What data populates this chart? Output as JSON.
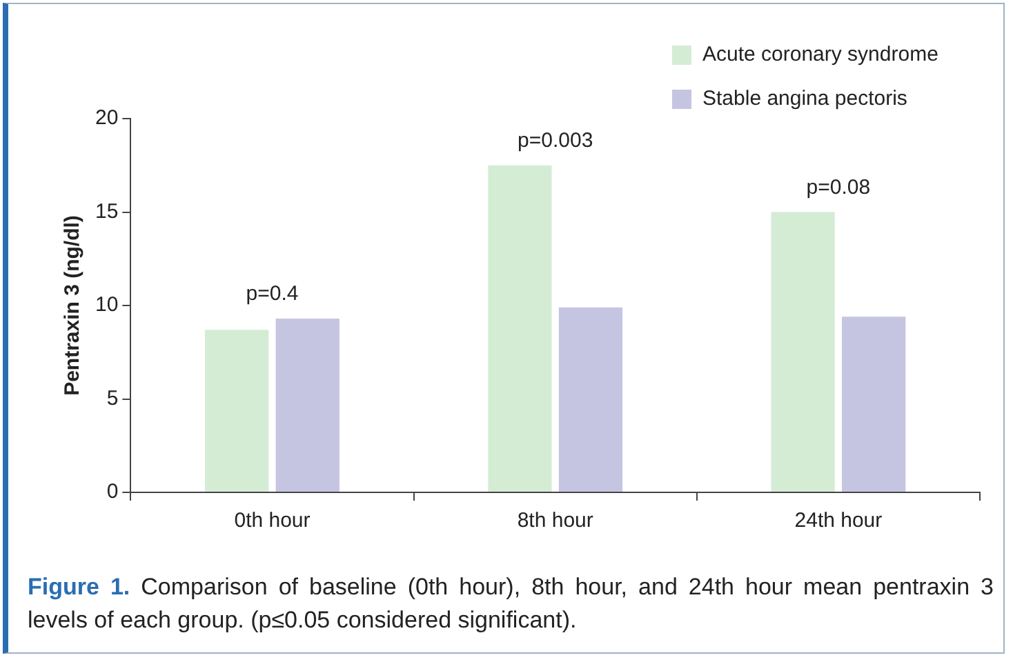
{
  "chart_data": {
    "type": "bar",
    "ylabel": "Pentraxin 3 (ng/dl)",
    "categories": [
      "0th hour",
      "8th hour",
      "24th hour"
    ],
    "series": [
      {
        "name": "Acute coronary syndrome",
        "color": "#d5ecd4",
        "values": [
          8.7,
          17.5,
          15.0
        ]
      },
      {
        "name": "Stable angina pectoris",
        "color": "#c5c5e2",
        "values": [
          9.3,
          9.9,
          9.4
        ]
      }
    ],
    "ylim": [
      0,
      20
    ],
    "yticks": [
      0,
      5,
      10,
      15,
      20
    ],
    "grid": false,
    "legend": "top right",
    "annotations": [
      {
        "text": "p=0.4",
        "x": "0th hour",
        "y": 9.3
      },
      {
        "text": "p=0.003",
        "x": "8th hour",
        "y": 17.5
      },
      {
        "text": "p=0.08",
        "x": "24th hour",
        "y": 15.0
      },
      "Figure 1.",
      "Comparison of baseline (0th hour), 8th hour, and 24th hour mean pentraxin 3 levels of each group. (p≤0.05 considered significant)."
    ]
  }
}
